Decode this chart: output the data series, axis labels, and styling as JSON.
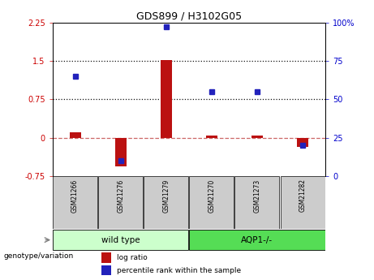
{
  "title": "GDS899 / H3102G05",
  "samples": [
    "GSM21266",
    "GSM21276",
    "GSM21279",
    "GSM21270",
    "GSM21273",
    "GSM21282"
  ],
  "log_ratio": [
    0.1,
    -0.55,
    1.52,
    0.05,
    0.04,
    -0.18
  ],
  "percentile_rank": [
    65,
    10,
    97,
    55,
    55,
    20
  ],
  "left_ylim": [
    -0.75,
    2.25
  ],
  "right_ylim": [
    0,
    100
  ],
  "left_yticks": [
    -0.75,
    0,
    0.75,
    1.5,
    2.25
  ],
  "right_yticks": [
    0,
    25,
    50,
    75,
    100
  ],
  "hlines": [
    0.75,
    1.5
  ],
  "bar_color_red": "#bb1111",
  "bar_color_blue": "#2222bb",
  "zero_line_color": "#cc6666",
  "hline_color": "#111111",
  "wt_color": "#ccffcc",
  "aqp_color": "#55dd55",
  "sample_box_color": "#cccccc",
  "bar_width": 0.25,
  "marker_size": 5
}
